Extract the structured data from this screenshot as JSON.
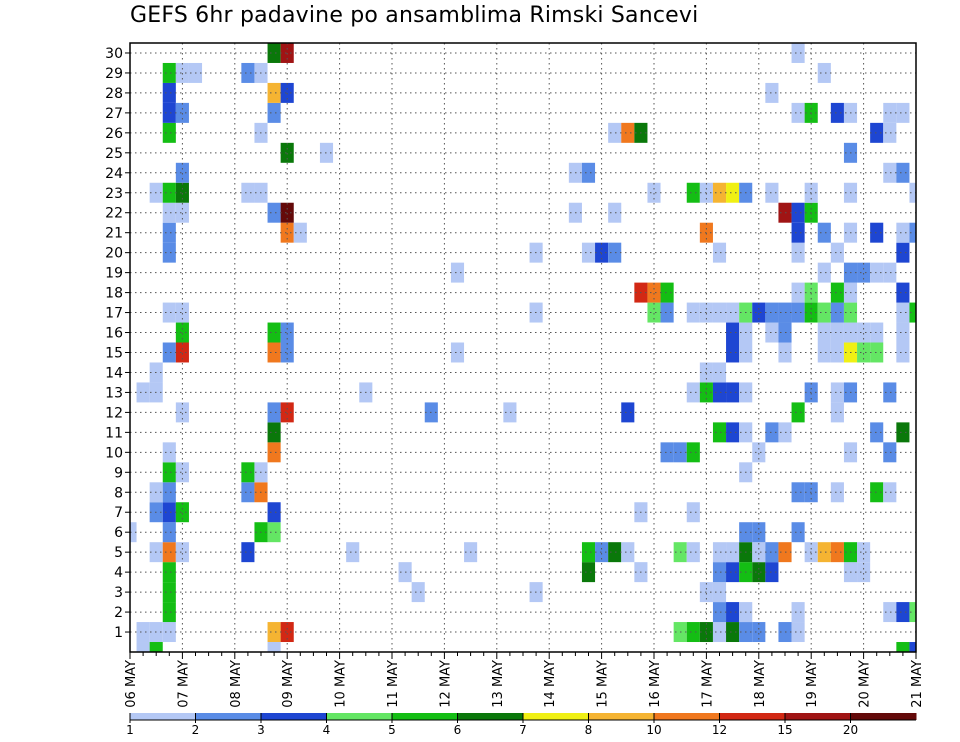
{
  "title": "GEFS 6hr padavine po ansamblima Rimski Sancevi",
  "chart_data": {
    "type": "heatmap",
    "title": "GEFS 6hr padavine po ansamblima Rimski Sancevi",
    "xlabel": "",
    "ylabel": "",
    "y_tick_labels": [
      "1",
      "2",
      "3",
      "4",
      "5",
      "6",
      "7",
      "8",
      "9",
      "10",
      "11",
      "12",
      "13",
      "14",
      "15",
      "16",
      "17",
      "18",
      "19",
      "20",
      "21",
      "22",
      "23",
      "24",
      "25",
      "26",
      "27",
      "28",
      "29",
      "30"
    ],
    "x_tick_labels": [
      "06 MAY",
      "07 MAY",
      "08 MAY",
      "09 MAY",
      "10 MAY",
      "11 MAY",
      "12 MAY",
      "13 MAY",
      "14 MAY",
      "15 MAY",
      "16 MAY",
      "17 MAY",
      "18 MAY",
      "19 MAY",
      "20 MAY",
      "21 MAY"
    ],
    "x_day_index_range": [
      0,
      15
    ],
    "grid": true,
    "legend_placement": "bottom",
    "legend": {
      "labels": [
        "1",
        "2",
        "3",
        "4",
        "5",
        "6",
        "7",
        "8",
        "10",
        "12",
        "15",
        "20"
      ],
      "colors": [
        "#b4c8f5",
        "#5a8ce6",
        "#1e46d2",
        "#64e664",
        "#14be14",
        "#0a780a",
        "#f0f014",
        "#f5b432",
        "#f0781e",
        "#d22814",
        "#a01414",
        "#640a0a"
      ]
    },
    "cells": [
      {
        "d": 0.25,
        "m": 1,
        "v": 1
      },
      {
        "d": 0.5,
        "m": 1,
        "v": 1
      },
      {
        "d": 0.75,
        "m": 1,
        "v": 1
      },
      {
        "d": 2.75,
        "m": 1,
        "v": 8
      },
      {
        "d": 3,
        "m": 1,
        "v": 12
      },
      {
        "d": 10.5,
        "m": 1,
        "v": 4
      },
      {
        "d": 10.75,
        "m": 1,
        "v": 5
      },
      {
        "d": 11,
        "m": 1,
        "v": 6
      },
      {
        "d": 11.25,
        "m": 1,
        "v": 1
      },
      {
        "d": 11.5,
        "m": 1,
        "v": 6
      },
      {
        "d": 11.75,
        "m": 1,
        "v": 2
      },
      {
        "d": 12,
        "m": 1,
        "v": 2
      },
      {
        "d": 12.5,
        "m": 1,
        "v": 2
      },
      {
        "d": 12.75,
        "m": 1,
        "v": 1
      },
      {
        "d": 0.75,
        "m": 2,
        "v": 5
      },
      {
        "d": 11.25,
        "m": 2,
        "v": 2
      },
      {
        "d": 11.5,
        "m": 2,
        "v": 3
      },
      {
        "d": 11.75,
        "m": 2,
        "v": 1
      },
      {
        "d": 12.75,
        "m": 2,
        "v": 1
      },
      {
        "d": 14.5,
        "m": 2,
        "v": 1
      },
      {
        "d": 14.75,
        "m": 2,
        "v": 3
      },
      {
        "d": 15,
        "m": 2,
        "v": 4
      },
      {
        "d": 0.75,
        "m": 3,
        "v": 5
      },
      {
        "d": 5.5,
        "m": 3,
        "v": 1
      },
      {
        "d": 7.75,
        "m": 3,
        "v": 1
      },
      {
        "d": 11,
        "m": 3,
        "v": 1
      },
      {
        "d": 11.25,
        "m": 3,
        "v": 1
      },
      {
        "d": 0.75,
        "m": 4,
        "v": 5
      },
      {
        "d": 5.25,
        "m": 4,
        "v": 1
      },
      {
        "d": 8.75,
        "m": 4,
        "v": 6
      },
      {
        "d": 9.75,
        "m": 4,
        "v": 1
      },
      {
        "d": 11.25,
        "m": 4,
        "v": 2
      },
      {
        "d": 11.5,
        "m": 4,
        "v": 3
      },
      {
        "d": 11.75,
        "m": 4,
        "v": 5
      },
      {
        "d": 12,
        "m": 4,
        "v": 6
      },
      {
        "d": 12.25,
        "m": 4,
        "v": 3
      },
      {
        "d": 13.75,
        "m": 4,
        "v": 1
      },
      {
        "d": 14,
        "m": 4,
        "v": 1
      },
      {
        "d": 0.5,
        "m": 5,
        "v": 1
      },
      {
        "d": 0.75,
        "m": 5,
        "v": 10
      },
      {
        "d": 1,
        "m": 5,
        "v": 1
      },
      {
        "d": 2.25,
        "m": 5,
        "v": 3
      },
      {
        "d": 4.25,
        "m": 5,
        "v": 1
      },
      {
        "d": 6.5,
        "m": 5,
        "v": 1
      },
      {
        "d": 8.75,
        "m": 5,
        "v": 5
      },
      {
        "d": 9,
        "m": 5,
        "v": 2
      },
      {
        "d": 9.25,
        "m": 5,
        "v": 6
      },
      {
        "d": 9.5,
        "m": 5,
        "v": 1
      },
      {
        "d": 10.5,
        "m": 5,
        "v": 4
      },
      {
        "d": 10.75,
        "m": 5,
        "v": 1
      },
      {
        "d": 11.25,
        "m": 5,
        "v": 1
      },
      {
        "d": 11.5,
        "m": 5,
        "v": 1
      },
      {
        "d": 11.75,
        "m": 5,
        "v": 6
      },
      {
        "d": 12,
        "m": 5,
        "v": 1
      },
      {
        "d": 12.25,
        "m": 5,
        "v": 2
      },
      {
        "d": 12.5,
        "m": 5,
        "v": 10
      },
      {
        "d": 13,
        "m": 5,
        "v": 1
      },
      {
        "d": 13.25,
        "m": 5,
        "v": 8
      },
      {
        "d": 13.5,
        "m": 5,
        "v": 10
      },
      {
        "d": 13.75,
        "m": 5,
        "v": 5
      },
      {
        "d": 14,
        "m": 5,
        "v": 1
      },
      {
        "d": 0,
        "m": 6,
        "v": 1
      },
      {
        "d": 0.75,
        "m": 6,
        "v": 2
      },
      {
        "d": 2.5,
        "m": 6,
        "v": 5
      },
      {
        "d": 2.75,
        "m": 6,
        "v": 4
      },
      {
        "d": 11.75,
        "m": 6,
        "v": 2
      },
      {
        "d": 12,
        "m": 6,
        "v": 2
      },
      {
        "d": 12.75,
        "m": 6,
        "v": 2
      },
      {
        "d": 0.5,
        "m": 7,
        "v": 2
      },
      {
        "d": 0.75,
        "m": 7,
        "v": 3
      },
      {
        "d": 1,
        "m": 7,
        "v": 5
      },
      {
        "d": 2.75,
        "m": 7,
        "v": 3
      },
      {
        "d": 9.75,
        "m": 7,
        "v": 1
      },
      {
        "d": 10.75,
        "m": 7,
        "v": 1
      },
      {
        "d": 0.5,
        "m": 8,
        "v": 1
      },
      {
        "d": 0.75,
        "m": 8,
        "v": 2
      },
      {
        "d": 2.25,
        "m": 8,
        "v": 2
      },
      {
        "d": 2.5,
        "m": 8,
        "v": 10
      },
      {
        "d": 12.75,
        "m": 8,
        "v": 2
      },
      {
        "d": 13,
        "m": 8,
        "v": 2
      },
      {
        "d": 13.5,
        "m": 8,
        "v": 1
      },
      {
        "d": 14.25,
        "m": 8,
        "v": 5
      },
      {
        "d": 14.5,
        "m": 8,
        "v": 1
      },
      {
        "d": 0.75,
        "m": 9,
        "v": 5
      },
      {
        "d": 1,
        "m": 9,
        "v": 1
      },
      {
        "d": 2.25,
        "m": 9,
        "v": 5
      },
      {
        "d": 2.5,
        "m": 9,
        "v": 1
      },
      {
        "d": 11.75,
        "m": 9,
        "v": 1
      },
      {
        "d": 0.75,
        "m": 10,
        "v": 1
      },
      {
        "d": 2.75,
        "m": 10,
        "v": 10
      },
      {
        "d": 10.25,
        "m": 10,
        "v": 2
      },
      {
        "d": 10.5,
        "m": 10,
        "v": 2
      },
      {
        "d": 10.75,
        "m": 10,
        "v": 5
      },
      {
        "d": 12,
        "m": 10,
        "v": 1
      },
      {
        "d": 13.75,
        "m": 10,
        "v": 1
      },
      {
        "d": 14.5,
        "m": 10,
        "v": 2
      },
      {
        "d": 2.75,
        "m": 11,
        "v": 6
      },
      {
        "d": 11.25,
        "m": 11,
        "v": 5
      },
      {
        "d": 11.5,
        "m": 11,
        "v": 3
      },
      {
        "d": 11.75,
        "m": 11,
        "v": 1
      },
      {
        "d": 12.25,
        "m": 11,
        "v": 2
      },
      {
        "d": 12.5,
        "m": 11,
        "v": 1
      },
      {
        "d": 14.25,
        "m": 11,
        "v": 2
      },
      {
        "d": 14.75,
        "m": 11,
        "v": 6
      },
      {
        "d": 1,
        "m": 12,
        "v": 1
      },
      {
        "d": 2.75,
        "m": 12,
        "v": 2
      },
      {
        "d": 3,
        "m": 12,
        "v": 12
      },
      {
        "d": 5.75,
        "m": 12,
        "v": 2
      },
      {
        "d": 7.25,
        "m": 12,
        "v": 1
      },
      {
        "d": 9.5,
        "m": 12,
        "v": 3
      },
      {
        "d": 12.75,
        "m": 12,
        "v": 5
      },
      {
        "d": 13.5,
        "m": 12,
        "v": 1
      },
      {
        "d": 0.25,
        "m": 13,
        "v": 1
      },
      {
        "d": 0.5,
        "m": 13,
        "v": 1
      },
      {
        "d": 4.5,
        "m": 13,
        "v": 1
      },
      {
        "d": 10.75,
        "m": 13,
        "v": 1
      },
      {
        "d": 11,
        "m": 13,
        "v": 5
      },
      {
        "d": 11.25,
        "m": 13,
        "v": 3
      },
      {
        "d": 11.5,
        "m": 13,
        "v": 3
      },
      {
        "d": 11.75,
        "m": 13,
        "v": 1
      },
      {
        "d": 13,
        "m": 13,
        "v": 2
      },
      {
        "d": 13.5,
        "m": 13,
        "v": 1
      },
      {
        "d": 13.75,
        "m": 13,
        "v": 2
      },
      {
        "d": 14.5,
        "m": 13,
        "v": 2
      },
      {
        "d": 0.5,
        "m": 14,
        "v": 1
      },
      {
        "d": 11,
        "m": 14,
        "v": 1
      },
      {
        "d": 11.25,
        "m": 14,
        "v": 1
      },
      {
        "d": 0.75,
        "m": 15,
        "v": 2
      },
      {
        "d": 1,
        "m": 15,
        "v": 12
      },
      {
        "d": 2.75,
        "m": 15,
        "v": 10
      },
      {
        "d": 3,
        "m": 15,
        "v": 2
      },
      {
        "d": 6.25,
        "m": 15,
        "v": 1
      },
      {
        "d": 11.5,
        "m": 15,
        "v": 3
      },
      {
        "d": 11.75,
        "m": 15,
        "v": 1
      },
      {
        "d": 12.5,
        "m": 15,
        "v": 1
      },
      {
        "d": 13.25,
        "m": 15,
        "v": 1
      },
      {
        "d": 13.5,
        "m": 15,
        "v": 1
      },
      {
        "d": 13.75,
        "m": 15,
        "v": 7
      },
      {
        "d": 14,
        "m": 15,
        "v": 4
      },
      {
        "d": 14.25,
        "m": 15,
        "v": 4
      },
      {
        "d": 14.75,
        "m": 15,
        "v": 1
      },
      {
        "d": 1,
        "m": 16,
        "v": 5
      },
      {
        "d": 2.75,
        "m": 16,
        "v": 5
      },
      {
        "d": 3,
        "m": 16,
        "v": 2
      },
      {
        "d": 11.5,
        "m": 16,
        "v": 3
      },
      {
        "d": 11.75,
        "m": 16,
        "v": 1
      },
      {
        "d": 12.25,
        "m": 16,
        "v": 1
      },
      {
        "d": 12.5,
        "m": 16,
        "v": 2
      },
      {
        "d": 13.25,
        "m": 16,
        "v": 1
      },
      {
        "d": 13.5,
        "m": 16,
        "v": 1
      },
      {
        "d": 13.75,
        "m": 16,
        "v": 1
      },
      {
        "d": 14,
        "m": 16,
        "v": 1
      },
      {
        "d": 14.25,
        "m": 16,
        "v": 1
      },
      {
        "d": 14.75,
        "m": 16,
        "v": 1
      },
      {
        "d": 0.75,
        "m": 17,
        "v": 1
      },
      {
        "d": 1,
        "m": 17,
        "v": 1
      },
      {
        "d": 7.75,
        "m": 17,
        "v": 1
      },
      {
        "d": 10,
        "m": 17,
        "v": 4
      },
      {
        "d": 10.25,
        "m": 17,
        "v": 2
      },
      {
        "d": 10.75,
        "m": 17,
        "v": 1
      },
      {
        "d": 11,
        "m": 17,
        "v": 1
      },
      {
        "d": 11.25,
        "m": 17,
        "v": 1
      },
      {
        "d": 11.5,
        "m": 17,
        "v": 1
      },
      {
        "d": 11.75,
        "m": 17,
        "v": 4
      },
      {
        "d": 12,
        "m": 17,
        "v": 3
      },
      {
        "d": 12.25,
        "m": 17,
        "v": 2
      },
      {
        "d": 12.5,
        "m": 17,
        "v": 2
      },
      {
        "d": 12.75,
        "m": 17,
        "v": 2
      },
      {
        "d": 13,
        "m": 17,
        "v": 5
      },
      {
        "d": 13.25,
        "m": 17,
        "v": 4
      },
      {
        "d": 13.5,
        "m": 17,
        "v": 2
      },
      {
        "d": 13.75,
        "m": 17,
        "v": 4
      },
      {
        "d": 14.75,
        "m": 17,
        "v": 1
      },
      {
        "d": 15,
        "m": 17,
        "v": 5
      },
      {
        "d": 9.75,
        "m": 18,
        "v": 12
      },
      {
        "d": 10,
        "m": 18,
        "v": 10
      },
      {
        "d": 10.25,
        "m": 18,
        "v": 5
      },
      {
        "d": 12.75,
        "m": 18,
        "v": 1
      },
      {
        "d": 13,
        "m": 18,
        "v": 4
      },
      {
        "d": 13.5,
        "m": 18,
        "v": 5
      },
      {
        "d": 13.75,
        "m": 18,
        "v": 1
      },
      {
        "d": 14.75,
        "m": 18,
        "v": 3
      },
      {
        "d": 6.25,
        "m": 19,
        "v": 1
      },
      {
        "d": 13.25,
        "m": 19,
        "v": 1
      },
      {
        "d": 13.75,
        "m": 19,
        "v": 2
      },
      {
        "d": 14,
        "m": 19,
        "v": 2
      },
      {
        "d": 14.25,
        "m": 19,
        "v": 1
      },
      {
        "d": 14.5,
        "m": 19,
        "v": 1
      },
      {
        "d": 0.75,
        "m": 20,
        "v": 2
      },
      {
        "d": 7.75,
        "m": 20,
        "v": 1
      },
      {
        "d": 8.75,
        "m": 20,
        "v": 1
      },
      {
        "d": 9,
        "m": 20,
        "v": 3
      },
      {
        "d": 9.25,
        "m": 20,
        "v": 2
      },
      {
        "d": 11.25,
        "m": 20,
        "v": 1
      },
      {
        "d": 12.75,
        "m": 20,
        "v": 1
      },
      {
        "d": 13.5,
        "m": 20,
        "v": 1
      },
      {
        "d": 14.75,
        "m": 20,
        "v": 3
      },
      {
        "d": 0.75,
        "m": 21,
        "v": 2
      },
      {
        "d": 3,
        "m": 21,
        "v": 10
      },
      {
        "d": 3.25,
        "m": 21,
        "v": 1
      },
      {
        "d": 11,
        "m": 21,
        "v": 10
      },
      {
        "d": 12.75,
        "m": 21,
        "v": 3
      },
      {
        "d": 13.25,
        "m": 21,
        "v": 2
      },
      {
        "d": 13.75,
        "m": 21,
        "v": 1
      },
      {
        "d": 14.25,
        "m": 21,
        "v": 3
      },
      {
        "d": 14.75,
        "m": 21,
        "v": 1
      },
      {
        "d": 15,
        "m": 21,
        "v": 2
      },
      {
        "d": 0.75,
        "m": 22,
        "v": 1
      },
      {
        "d": 1,
        "m": 22,
        "v": 1
      },
      {
        "d": 2.75,
        "m": 22,
        "v": 2
      },
      {
        "d": 3,
        "m": 22,
        "v": 20
      },
      {
        "d": 8.5,
        "m": 22,
        "v": 1
      },
      {
        "d": 9.25,
        "m": 22,
        "v": 1
      },
      {
        "d": 12.5,
        "m": 22,
        "v": 15
      },
      {
        "d": 12.75,
        "m": 22,
        "v": 3
      },
      {
        "d": 13,
        "m": 22,
        "v": 5
      },
      {
        "d": 0.5,
        "m": 23,
        "v": 1
      },
      {
        "d": 0.75,
        "m": 23,
        "v": 5
      },
      {
        "d": 1,
        "m": 23,
        "v": 6
      },
      {
        "d": 2.25,
        "m": 23,
        "v": 1
      },
      {
        "d": 2.5,
        "m": 23,
        "v": 1
      },
      {
        "d": 10,
        "m": 23,
        "v": 1
      },
      {
        "d": 10.75,
        "m": 23,
        "v": 5
      },
      {
        "d": 11,
        "m": 23,
        "v": 1
      },
      {
        "d": 11.25,
        "m": 23,
        "v": 8
      },
      {
        "d": 11.5,
        "m": 23,
        "v": 7
      },
      {
        "d": 11.75,
        "m": 23,
        "v": 2
      },
      {
        "d": 12.25,
        "m": 23,
        "v": 1
      },
      {
        "d": 13,
        "m": 23,
        "v": 1
      },
      {
        "d": 13.75,
        "m": 23,
        "v": 1
      },
      {
        "d": 15,
        "m": 23,
        "v": 1
      },
      {
        "d": 1,
        "m": 24,
        "v": 2
      },
      {
        "d": 8.5,
        "m": 24,
        "v": 1
      },
      {
        "d": 8.75,
        "m": 24,
        "v": 2
      },
      {
        "d": 14.5,
        "m": 24,
        "v": 1
      },
      {
        "d": 14.75,
        "m": 24,
        "v": 2
      },
      {
        "d": 3,
        "m": 25,
        "v": 6
      },
      {
        "d": 3.75,
        "m": 25,
        "v": 1
      },
      {
        "d": 13.75,
        "m": 25,
        "v": 2
      },
      {
        "d": 0.75,
        "m": 26,
        "v": 5
      },
      {
        "d": 2.5,
        "m": 26,
        "v": 1
      },
      {
        "d": 9.25,
        "m": 26,
        "v": 1
      },
      {
        "d": 9.5,
        "m": 26,
        "v": 10
      },
      {
        "d": 9.75,
        "m": 26,
        "v": 6
      },
      {
        "d": 14.25,
        "m": 26,
        "v": 3
      },
      {
        "d": 14.5,
        "m": 26,
        "v": 1
      },
      {
        "d": 0.75,
        "m": 27,
        "v": 3
      },
      {
        "d": 1,
        "m": 27,
        "v": 2
      },
      {
        "d": 2.75,
        "m": 27,
        "v": 2
      },
      {
        "d": 12.75,
        "m": 27,
        "v": 1
      },
      {
        "d": 13,
        "m": 27,
        "v": 5
      },
      {
        "d": 13.5,
        "m": 27,
        "v": 3
      },
      {
        "d": 13.75,
        "m": 27,
        "v": 1
      },
      {
        "d": 14.5,
        "m": 27,
        "v": 1
      },
      {
        "d": 14.75,
        "m": 27,
        "v": 1
      },
      {
        "d": 0.75,
        "m": 28,
        "v": 3
      },
      {
        "d": 2.75,
        "m": 28,
        "v": 8
      },
      {
        "d": 3,
        "m": 28,
        "v": 3
      },
      {
        "d": 12.25,
        "m": 28,
        "v": 1
      },
      {
        "d": 0.75,
        "m": 29,
        "v": 5
      },
      {
        "d": 1,
        "m": 29,
        "v": 1
      },
      {
        "d": 1.25,
        "m": 29,
        "v": 1
      },
      {
        "d": 2.25,
        "m": 29,
        "v": 2
      },
      {
        "d": 2.5,
        "m": 29,
        "v": 1
      },
      {
        "d": 13.25,
        "m": 29,
        "v": 1
      },
      {
        "d": 2.75,
        "m": 30,
        "v": 6
      },
      {
        "d": 3,
        "m": 30,
        "v": 15
      },
      {
        "d": 12.75,
        "m": 30,
        "v": 1
      },
      {
        "d": 0.25,
        "m": 0,
        "v": 1
      },
      {
        "d": 0.5,
        "m": 0,
        "v": 5
      },
      {
        "d": 2.75,
        "m": 0,
        "v": 1
      },
      {
        "d": 14.75,
        "m": 0,
        "v": 5
      },
      {
        "d": 15,
        "m": 0,
        "v": 3
      }
    ]
  }
}
